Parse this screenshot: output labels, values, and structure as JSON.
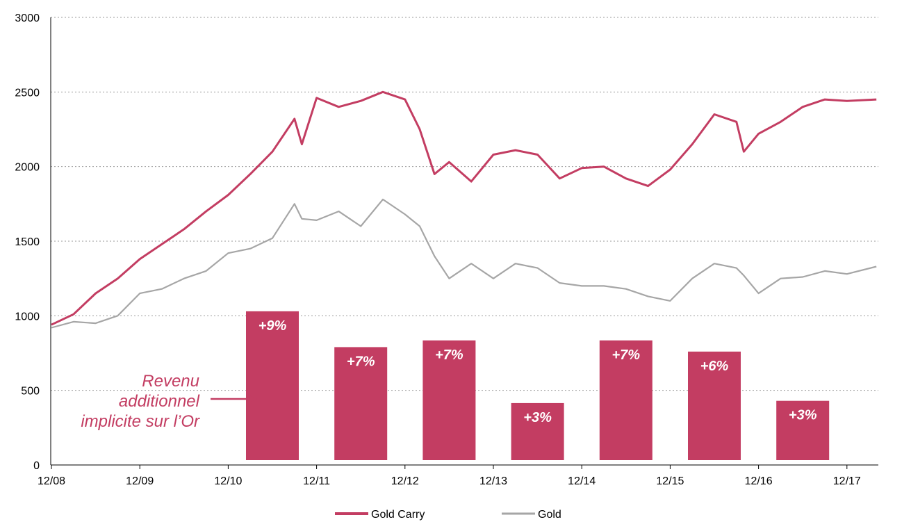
{
  "chart_data": {
    "type": "line",
    "ylim": [
      0,
      3000
    ],
    "yticks": [
      "0",
      "500",
      "1000",
      "1500",
      "2000",
      "2500",
      "3000"
    ],
    "x_ticks": [
      "12/08",
      "12/09",
      "12/10",
      "12/11",
      "12/12",
      "12/13",
      "12/14",
      "12/15",
      "12/16",
      "12/17"
    ],
    "grid": "horizontal-dotted",
    "legend_position": "bottom",
    "colors": {
      "gold_carry": "#C33D62",
      "gold": "#A6A6A6",
      "bars": "#C33D62",
      "annotation": "#C33D62"
    },
    "series": [
      {
        "name": "Gold Carry",
        "key": "gold_carry",
        "points": [
          [
            "12/08",
            940
          ],
          [
            "03/09",
            1010
          ],
          [
            "06/09",
            1150
          ],
          [
            "09/09",
            1250
          ],
          [
            "12/09",
            1380
          ],
          [
            "03/10",
            1480
          ],
          [
            "06/10",
            1580
          ],
          [
            "09/10",
            1700
          ],
          [
            "12/10",
            1810
          ],
          [
            "03/11",
            1950
          ],
          [
            "06/11",
            2100
          ],
          [
            "09/11",
            2320
          ],
          [
            "10/11",
            2150
          ],
          [
            "12/11",
            2460
          ],
          [
            "03/12",
            2400
          ],
          [
            "06/12",
            2440
          ],
          [
            "09/12",
            2500
          ],
          [
            "12/12",
            2450
          ],
          [
            "02/13",
            2250
          ],
          [
            "04/13",
            1950
          ],
          [
            "06/13",
            2030
          ],
          [
            "09/13",
            1900
          ],
          [
            "12/13",
            2080
          ],
          [
            "03/14",
            2110
          ],
          [
            "06/14",
            2080
          ],
          [
            "09/14",
            1920
          ],
          [
            "12/14",
            1990
          ],
          [
            "03/15",
            2000
          ],
          [
            "06/15",
            1920
          ],
          [
            "09/15",
            1870
          ],
          [
            "12/15",
            1980
          ],
          [
            "03/16",
            2150
          ],
          [
            "06/16",
            2350
          ],
          [
            "09/16",
            2300
          ],
          [
            "10/16",
            2100
          ],
          [
            "12/16",
            2220
          ],
          [
            "03/17",
            2300
          ],
          [
            "06/17",
            2400
          ],
          [
            "09/17",
            2450
          ],
          [
            "12/17",
            2440
          ],
          [
            "04/18",
            2450
          ]
        ]
      },
      {
        "name": "Gold",
        "key": "gold",
        "points": [
          [
            "12/08",
            920
          ],
          [
            "03/09",
            960
          ],
          [
            "06/09",
            950
          ],
          [
            "09/09",
            1000
          ],
          [
            "12/09",
            1150
          ],
          [
            "03/10",
            1180
          ],
          [
            "06/10",
            1250
          ],
          [
            "09/10",
            1300
          ],
          [
            "12/10",
            1420
          ],
          [
            "03/11",
            1450
          ],
          [
            "06/11",
            1520
          ],
          [
            "09/11",
            1750
          ],
          [
            "10/11",
            1650
          ],
          [
            "12/11",
            1640
          ],
          [
            "03/12",
            1700
          ],
          [
            "06/12",
            1600
          ],
          [
            "09/12",
            1780
          ],
          [
            "12/12",
            1680
          ],
          [
            "02/13",
            1600
          ],
          [
            "04/13",
            1400
          ],
          [
            "06/13",
            1250
          ],
          [
            "09/13",
            1350
          ],
          [
            "12/13",
            1250
          ],
          [
            "03/14",
            1350
          ],
          [
            "06/14",
            1320
          ],
          [
            "09/14",
            1220
          ],
          [
            "12/14",
            1200
          ],
          [
            "03/15",
            1200
          ],
          [
            "06/15",
            1180
          ],
          [
            "09/15",
            1130
          ],
          [
            "12/15",
            1100
          ],
          [
            "03/16",
            1250
          ],
          [
            "06/16",
            1350
          ],
          [
            "09/16",
            1320
          ],
          [
            "10/16",
            1270
          ],
          [
            "12/16",
            1150
          ],
          [
            "03/17",
            1250
          ],
          [
            "06/17",
            1260
          ],
          [
            "09/17",
            1300
          ],
          [
            "12/17",
            1280
          ],
          [
            "04/18",
            1330
          ]
        ]
      }
    ],
    "bars": [
      {
        "label": "+9%",
        "value": 1030
      },
      {
        "label": "+7%",
        "value": 790
      },
      {
        "label": "+7%",
        "value": 835
      },
      {
        "label": "+3%",
        "value": 415
      },
      {
        "label": "+7%",
        "value": 835
      },
      {
        "label": "+6%",
        "value": 760
      },
      {
        "label": "+3%",
        "value": 430
      }
    ],
    "annotation": {
      "lines": [
        "Revenu",
        "additionnel",
        "implicite sur l’Or"
      ]
    }
  }
}
